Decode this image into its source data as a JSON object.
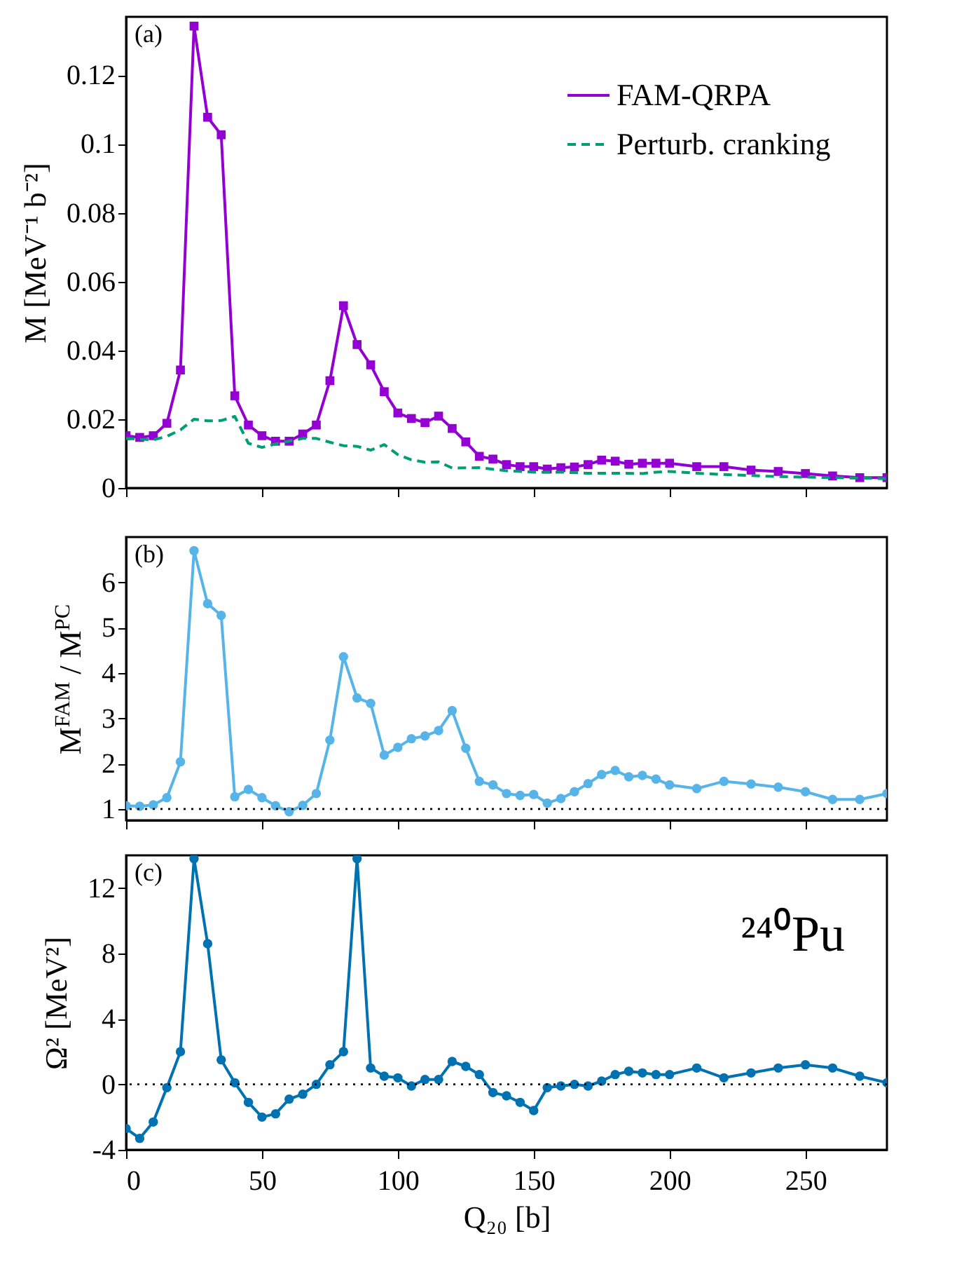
{
  "chart_data": [
    {
      "type": "line",
      "x": [
        0,
        5,
        10,
        15,
        20,
        25,
        30,
        35,
        40,
        45,
        50,
        55,
        60,
        65,
        70,
        75,
        80,
        85,
        90,
        95,
        100,
        105,
        110,
        115,
        120,
        125,
        130,
        135,
        140,
        145,
        150,
        155,
        160,
        165,
        170,
        175,
        180,
        185,
        190,
        195,
        200,
        210,
        220,
        230,
        240,
        250,
        260,
        270,
        280
      ],
      "xlim": [
        0,
        280
      ],
      "xticks": [
        0,
        50,
        100,
        150,
        200,
        250
      ],
      "ylim": [
        0,
        0.137
      ],
      "yticks": [
        0,
        0.02,
        0.04,
        0.06,
        0.08,
        0.1,
        0.12
      ],
      "ylabel": "M [MeV⁻¹ b⁻²]",
      "tick_labels": "y",
      "legend": "top right",
      "marker": "square",
      "series": [
        {
          "name": "FAM-QRPA",
          "color": "#9400d3",
          "values": [
            0.0152,
            0.0147,
            0.0152,
            0.0188,
            0.0343,
            0.1343,
            0.1078,
            0.1027,
            0.0268,
            0.0183,
            0.0152,
            0.0136,
            0.0136,
            0.0157,
            0.0183,
            0.0312,
            0.053,
            0.0417,
            0.0358,
            0.028,
            0.0218,
            0.0202,
            0.019,
            0.0209,
            0.0173,
            0.0134,
            0.0092,
            0.0084,
            0.0068,
            0.0062,
            0.0062,
            0.0055,
            0.0059,
            0.0061,
            0.0068,
            0.0081,
            0.0078,
            0.0069,
            0.0072,
            0.0072,
            0.0072,
            0.0062,
            0.0062,
            0.0052,
            0.0048,
            0.0042,
            0.0035,
            0.003,
            0.003
          ]
        },
        {
          "name": "Perturb. cranking",
          "color": "#009e73",
          "marker": "none",
          "line_style": "dashed",
          "x": [
            0,
            10,
            15,
            20,
            25,
            30,
            35,
            40,
            45,
            50,
            55,
            60,
            65,
            70,
            75,
            80,
            85,
            90,
            95,
            100,
            105,
            110,
            115,
            120,
            130,
            140,
            150,
            160,
            170,
            180,
            190,
            195,
            200,
            210,
            220,
            230,
            240,
            260,
            280
          ],
          "values": [
            0.0144,
            0.014,
            0.015,
            0.0169,
            0.02,
            0.0195,
            0.0196,
            0.0208,
            0.013,
            0.0118,
            0.0128,
            0.0136,
            0.0144,
            0.0144,
            0.0133,
            0.0123,
            0.0121,
            0.011,
            0.0126,
            0.0097,
            0.0082,
            0.0075,
            0.0076,
            0.0058,
            0.0059,
            0.005,
            0.0046,
            0.0046,
            0.0043,
            0.0043,
            0.0042,
            0.0046,
            0.0048,
            0.0043,
            0.0039,
            0.0036,
            0.0033,
            0.003,
            0.0027
          ]
        }
      ],
      "annotations": [
        "(a)"
      ]
    },
    {
      "type": "line",
      "x": [
        0,
        5,
        10,
        15,
        20,
        25,
        30,
        35,
        40,
        45,
        50,
        55,
        60,
        65,
        70,
        75,
        80,
        85,
        90,
        95,
        100,
        105,
        110,
        115,
        120,
        125,
        130,
        135,
        140,
        145,
        150,
        155,
        160,
        165,
        170,
        175,
        180,
        185,
        190,
        195,
        200,
        210,
        220,
        230,
        240,
        250,
        260,
        270,
        280
      ],
      "xlim": [
        0,
        280
      ],
      "xticks": [
        0,
        50,
        100,
        150,
        200,
        250
      ],
      "ylim": [
        0.75,
        7
      ],
      "yticks": [
        1,
        2,
        3,
        4,
        5,
        6
      ],
      "ylabel": "M$^{FAM}$ / M$^{PC}$",
      "tick_labels": "y",
      "marker": "circle",
      "series": [
        {
          "color": "#56b4e9",
          "values": [
            1.07,
            1.06,
            1.09,
            1.25,
            2.04,
            6.7,
            5.53,
            5.27,
            1.27,
            1.43,
            1.25,
            1.07,
            0.94,
            1.08,
            1.34,
            2.52,
            4.36,
            3.45,
            3.33,
            2.19,
            2.36,
            2.55,
            2.61,
            2.73,
            3.17,
            2.34,
            1.61,
            1.53,
            1.34,
            1.3,
            1.32,
            1.13,
            1.23,
            1.38,
            1.56,
            1.76,
            1.85,
            1.71,
            1.74,
            1.66,
            1.53,
            1.45,
            1.61,
            1.55,
            1.48,
            1.38,
            1.21,
            1.21,
            1.34
          ]
        }
      ],
      "ref_lines": [
        {
          "axis": "y",
          "value": 1,
          "color": "#000000",
          "line_style": "dotted"
        }
      ],
      "annotations": [
        "(b)"
      ]
    },
    {
      "type": "line",
      "x": [
        0,
        5,
        10,
        15,
        20,
        25,
        30,
        35,
        40,
        45,
        50,
        55,
        60,
        65,
        70,
        75,
        80,
        85,
        90,
        95,
        100,
        105,
        110,
        115,
        120,
        125,
        130,
        135,
        140,
        145,
        150,
        155,
        160,
        165,
        170,
        175,
        180,
        185,
        190,
        195,
        200,
        210,
        220,
        230,
        240,
        250,
        260,
        270,
        280
      ],
      "xlim": [
        0,
        280
      ],
      "xticks": [
        0,
        50,
        100,
        150,
        200,
        250
      ],
      "xlabel": "Q₂₀ [b]",
      "ylim": [
        -4,
        14
      ],
      "yticks": [
        -4,
        0,
        4,
        8,
        12
      ],
      "ylabel": "Ω² [MeV²]",
      "marker": "circle",
      "series": [
        {
          "color": "#0072b2",
          "values": [
            -2.7,
            -3.3,
            -2.3,
            -0.2,
            2.0,
            13.8,
            8.6,
            1.5,
            0.1,
            -1.1,
            -2.0,
            -1.8,
            -0.9,
            -0.6,
            0.0,
            1.2,
            2.0,
            13.8,
            1.0,
            0.5,
            0.4,
            -0.1,
            0.3,
            0.3,
            1.4,
            1.1,
            0.6,
            -0.5,
            -0.7,
            -1.1,
            -1.6,
            -0.2,
            -0.1,
            0.0,
            -0.1,
            0.2,
            0.6,
            0.8,
            0.7,
            0.6,
            0.6,
            1.0,
            0.4,
            0.7,
            1.0,
            1.2,
            1.0,
            0.5,
            0.1
          ]
        }
      ],
      "ref_lines": [
        {
          "axis": "y",
          "value": 0,
          "color": "#000000",
          "line_style": "dotted"
        }
      ],
      "annotations": [
        "(c)",
        "²⁴⁰Pu"
      ]
    }
  ]
}
